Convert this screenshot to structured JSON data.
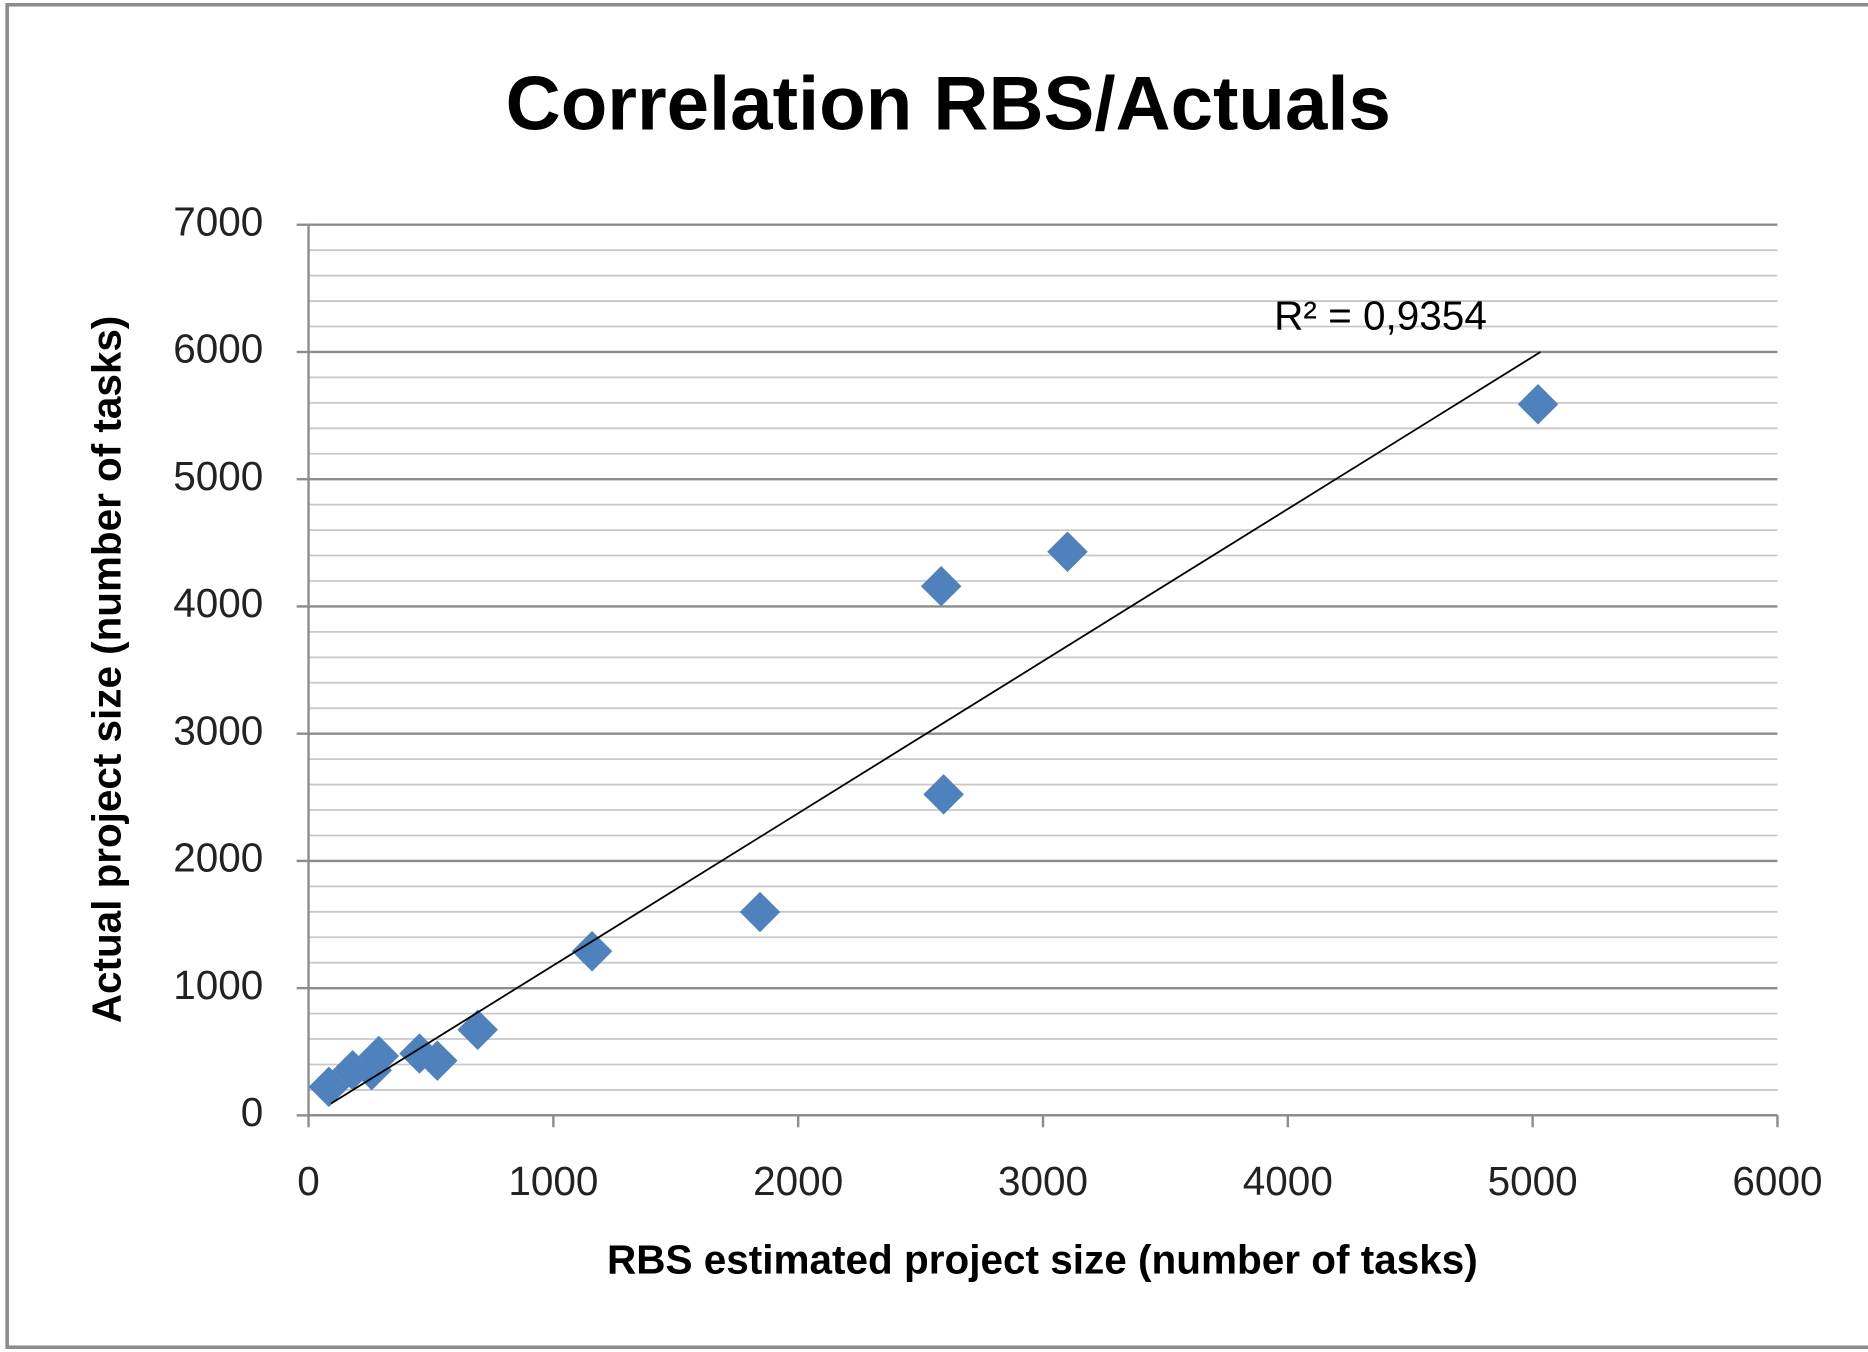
{
  "chart_data": {
    "type": "scatter",
    "title": "Correlation RBS/Actuals",
    "x_label": "RBS estimated project size (number of tasks)",
    "y_label": "Actual project size (number of tasks)",
    "x": [
      83,
      180,
      258,
      287,
      453,
      526,
      691,
      1158,
      1844,
      2584,
      2594,
      3100,
      5022
    ],
    "series": [
      {
        "name": "Actual project size",
        "color": "#4f81bd",
        "values": [
          224,
          355,
          355,
          467,
          486,
          430,
          673,
          1290,
          1598,
          4159,
          2523,
          4430,
          5589
        ]
      }
    ],
    "trendline": {
      "x": [
        92,
        5032
      ],
      "y": [
        93,
        6000
      ],
      "label": "R² = 0,9354",
      "color": "#000000"
    },
    "xlim": [
      0,
      6000
    ],
    "xticks": [
      0,
      1000,
      2000,
      3000,
      4000,
      5000,
      6000
    ],
    "ylim": [
      0,
      7000
    ],
    "yticks": [
      0,
      1000,
      2000,
      3000,
      4000,
      5000,
      6000,
      7000
    ],
    "minor_yticks": [
      200,
      400,
      600,
      800,
      1200,
      1400,
      1600,
      1800,
      2200,
      2400,
      2600,
      2800,
      3200,
      3400,
      3600,
      3800,
      4200,
      4400,
      4600,
      4800,
      5200,
      5400,
      5600,
      5800,
      6200,
      6400,
      6600,
      6800
    ],
    "grid": true,
    "legend": false
  }
}
